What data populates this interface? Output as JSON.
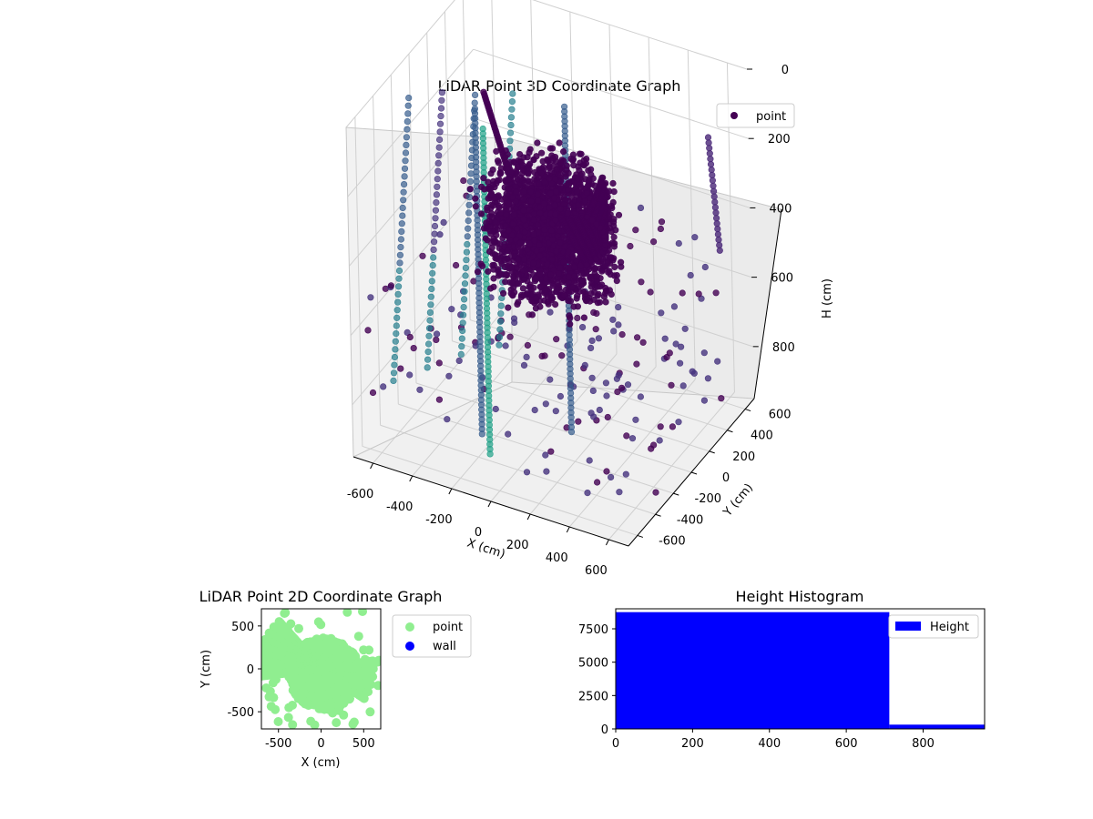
{
  "chart_data": [
    {
      "type": "scatter",
      "projection": "3d",
      "title": "LiDAR Point 3D Coordinate Graph",
      "xlabel": "X (cm)",
      "ylabel": "Y (cm)",
      "zlabel": "H (cm)",
      "xlim": [
        -700,
        700
      ],
      "ylim": [
        -700,
        700
      ],
      "zlim": [
        950,
        0
      ],
      "xticks": [
        -600,
        -400,
        -200,
        0,
        200,
        400,
        600
      ],
      "yticks": [
        -600,
        -400,
        -200,
        0,
        200,
        400,
        600
      ],
      "zticks": [
        0,
        200,
        400,
        600,
        800
      ],
      "colormap": "viridis",
      "legend": [
        "point"
      ],
      "legend_position": "upper-right",
      "grid": true,
      "series": [
        {
          "name": "point",
          "description": "dense cluster of points near the sensor, plus vertical pole lines and curved wall arcs",
          "color": "#440154"
        }
      ]
    },
    {
      "type": "scatter",
      "title": "LiDAR Point 2D Coordinate Graph",
      "xlabel": "X (cm)",
      "ylabel": "Y (cm)",
      "xlim": [
        -700,
        700
      ],
      "ylim": [
        -700,
        700
      ],
      "xticks": [
        -500,
        0,
        500
      ],
      "yticks": [
        -500,
        0,
        500
      ],
      "legend_position": "outside-right",
      "series": [
        {
          "name": "point",
          "color": "#90ee90"
        },
        {
          "name": "wall",
          "color": "#0000ff"
        }
      ]
    },
    {
      "type": "bar",
      "subtype": "histogram",
      "title": "Height Histogram",
      "xlim": [
        0,
        960
      ],
      "ylim": [
        0,
        9000
      ],
      "xticks": [
        0,
        200,
        400,
        600,
        800
      ],
      "yticks": [
        0,
        2500,
        5000,
        7500
      ],
      "bins": [
        {
          "from": 0,
          "to": 712,
          "count": 8750
        },
        {
          "from": 712,
          "to": 960,
          "count": 320
        }
      ],
      "legend": [
        "Height"
      ],
      "legend_position": "upper-right",
      "color": "#0000ff"
    }
  ]
}
